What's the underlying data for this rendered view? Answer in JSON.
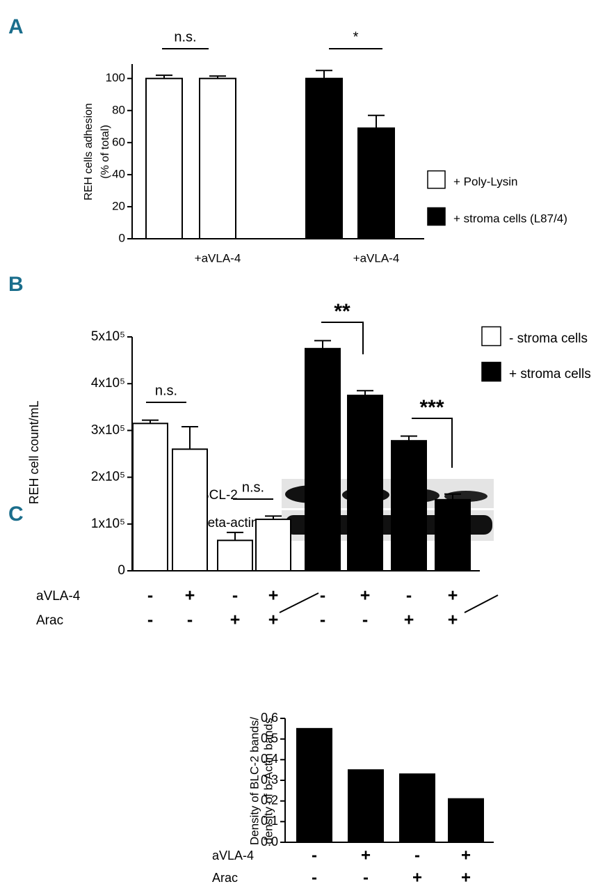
{
  "panels": [
    "A",
    "B",
    "C"
  ],
  "blot": {
    "labels": [
      "BCL-2",
      "beta-actin"
    ]
  },
  "chart_data": [
    {
      "type": "bar",
      "y_label": [
        "REH cells adhesion",
        "(% of total)"
      ],
      "categories": [
        null,
        "+aVLA-4",
        null,
        "+aVLA-4"
      ],
      "series": [
        {
          "name": "+ Poly-Lysin",
          "color": "#ffffff",
          "values": [
            100,
            100,
            null,
            null
          ],
          "errors": [
            2,
            1.5,
            null,
            null
          ]
        },
        {
          "name": "+ stroma cells (L87/4)",
          "color": "#000000",
          "values": [
            null,
            null,
            100,
            69
          ],
          "errors": [
            null,
            null,
            5,
            8
          ]
        }
      ],
      "annotations": [
        "n.s.",
        "*"
      ],
      "ylim": [
        0,
        109
      ],
      "yticks": [
        0,
        20,
        40,
        60,
        80,
        100
      ]
    },
    {
      "type": "bar",
      "y_label": [
        "REH cell count/mL"
      ],
      "series": [
        {
          "name": "- stroma cells",
          "color": "#ffffff",
          "values": [
            315000,
            260000,
            65000,
            110000,
            null,
            null,
            null,
            null
          ],
          "errors": [
            7000,
            48000,
            17000,
            7000,
            null,
            null,
            null,
            null
          ]
        },
        {
          "name": "+ stroma cells",
          "color": "#000000",
          "values": [
            null,
            null,
            null,
            null,
            475000,
            375000,
            278000,
            152000
          ],
          "errors": [
            null,
            null,
            null,
            null,
            17000,
            10000,
            10000,
            12000
          ]
        }
      ],
      "conditions": [
        {
          "label": "aVLA-4",
          "values": [
            "-",
            "+",
            "-",
            "+",
            "-",
            "+",
            "-",
            "+"
          ]
        },
        {
          "label": "Arac",
          "values": [
            "-",
            "-",
            "+",
            "+",
            "-",
            "-",
            "+",
            "+"
          ]
        }
      ],
      "annotations": [
        "n.s.",
        "n.s.",
        "**",
        "***"
      ],
      "ylim": [
        0,
        500000
      ],
      "yticks": [
        0,
        {
          "value": 100000,
          "label": "1x10⁵"
        },
        {
          "value": 200000,
          "label": "2x10⁵"
        },
        {
          "value": 300000,
          "label": "3x10⁵"
        },
        {
          "value": 400000,
          "label": "4x10⁵"
        },
        {
          "value": 500000,
          "label": "5x10⁵"
        }
      ]
    },
    {
      "type": "bar",
      "y_label": [
        "Density of BLC-2 bands/",
        "density of b-Actin bands"
      ],
      "series": [
        {
          "color": "#000000",
          "values": [
            0.55,
            0.35,
            0.33,
            0.21
          ]
        }
      ],
      "conditions": [
        {
          "label": "aVLA-4",
          "values": [
            "-",
            "+",
            "-",
            "+"
          ]
        },
        {
          "label": "Arac",
          "values": [
            "-",
            "-",
            "+",
            "+"
          ]
        }
      ],
      "ylim": [
        0,
        0.6
      ],
      "yticks": [
        {
          "value": 0,
          "label": "0.0"
        },
        0.1,
        0.2,
        0.3,
        0.4,
        0.5,
        0.6
      ]
    }
  ]
}
